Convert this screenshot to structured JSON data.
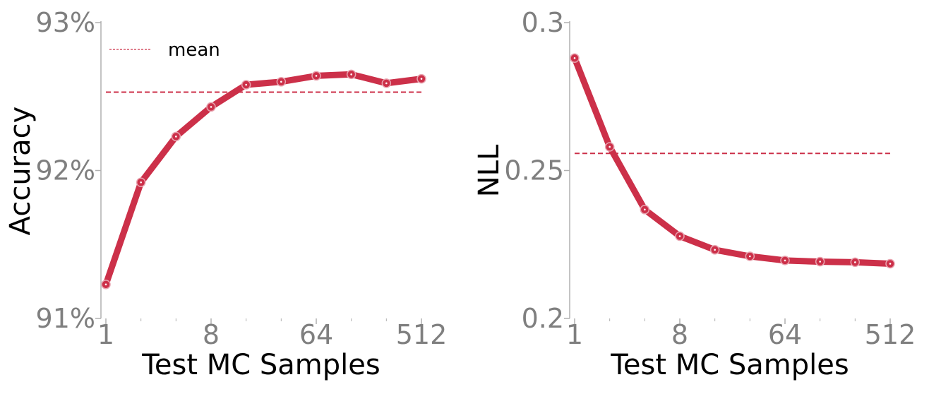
{
  "colors": {
    "series": "#cc3049",
    "axis": "#b0b0b0",
    "tick_text": "#7f7f7f"
  },
  "chart_data": [
    {
      "type": "line",
      "xscale": "log2",
      "x": [
        1,
        2,
        4,
        8,
        16,
        32,
        64,
        128,
        256,
        512
      ],
      "xticks": [
        1,
        8,
        64,
        512
      ],
      "xtick_labels": [
        "1",
        "8",
        "64",
        "512"
      ],
      "xlim": [
        1,
        512
      ],
      "values": [
        91.23,
        91.92,
        92.23,
        92.43,
        92.58,
        92.6,
        92.64,
        92.65,
        92.59,
        92.62
      ],
      "mean": 92.53,
      "ylim": [
        91,
        93
      ],
      "yticks": [
        91,
        92,
        93
      ],
      "ytick_labels": [
        "91%",
        "92%",
        "93%"
      ],
      "xlabel": "Test MC Samples",
      "ylabel": "Accuracy",
      "legend": {
        "label": "mean",
        "position": "top-left"
      }
    },
    {
      "type": "line",
      "xscale": "log2",
      "x": [
        1,
        2,
        4,
        8,
        16,
        32,
        64,
        128,
        256,
        512
      ],
      "xticks": [
        1,
        8,
        64,
        512
      ],
      "xtick_labels": [
        "1",
        "8",
        "64",
        "512"
      ],
      "xlim": [
        1,
        512
      ],
      "values": [
        0.288,
        0.258,
        0.2368,
        0.2278,
        0.2232,
        0.221,
        0.2196,
        0.2192,
        0.219,
        0.2185
      ],
      "mean": 0.2558,
      "ylim": [
        0.2,
        0.3
      ],
      "yticks": [
        0.2,
        0.25,
        0.3
      ],
      "ytick_labels": [
        "0.2",
        "0.25",
        "0.3"
      ],
      "xlabel": "Test MC Samples",
      "ylabel": "NLL"
    }
  ]
}
